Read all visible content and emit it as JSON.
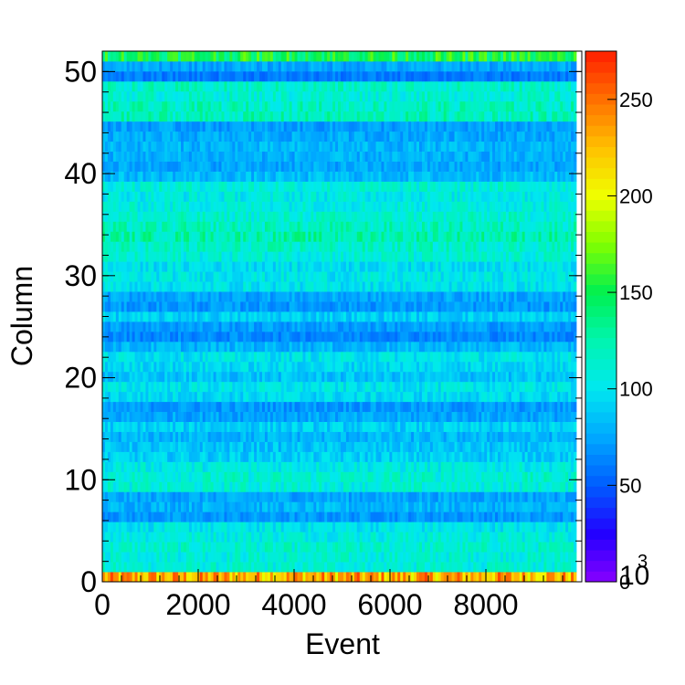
{
  "chart_data": {
    "type": "heatmap",
    "xlabel": "Event",
    "ylabel": "Column",
    "xlim": [
      0,
      10000
    ],
    "ylim": [
      0,
      52
    ],
    "x_ticks": [
      "0",
      "2000",
      "4000",
      "6000",
      "8000"
    ],
    "x_tick_values": [
      0,
      2000,
      4000,
      6000,
      8000
    ],
    "x_exponent_label": "10",
    "x_exponent_power": "3",
    "y_ticks": [
      "0",
      "10",
      "20",
      "30",
      "40",
      "50"
    ],
    "y_tick_values": [
      0,
      10,
      20,
      30,
      40,
      50
    ],
    "z_ticks": [
      "0",
      "50",
      "100",
      "150",
      "200",
      "250"
    ],
    "z_tick_values": [
      0,
      50,
      100,
      150,
      200,
      250
    ],
    "zlim": [
      0,
      275
    ],
    "row_mean_values": [
      230,
      110,
      110,
      112,
      108,
      100,
      70,
      80,
      75,
      110,
      112,
      105,
      90,
      85,
      80,
      90,
      75,
      70,
      95,
      100,
      85,
      95,
      100,
      80,
      65,
      72,
      90,
      70,
      75,
      100,
      102,
      98,
      110,
      115,
      125,
      118,
      112,
      108,
      105,
      110,
      82,
      75,
      78,
      80,
      76,
      72,
      120,
      118,
      112,
      115,
      60,
      75,
      150
    ],
    "palette": [
      "#8800ff",
      "#2200ff",
      "#005cff",
      "#00a8ff",
      "#00e8f0",
      "#00f5b0",
      "#00f050",
      "#80ff00",
      "#f0ff00",
      "#ffc000",
      "#ff7000",
      "#ff1e00"
    ]
  }
}
